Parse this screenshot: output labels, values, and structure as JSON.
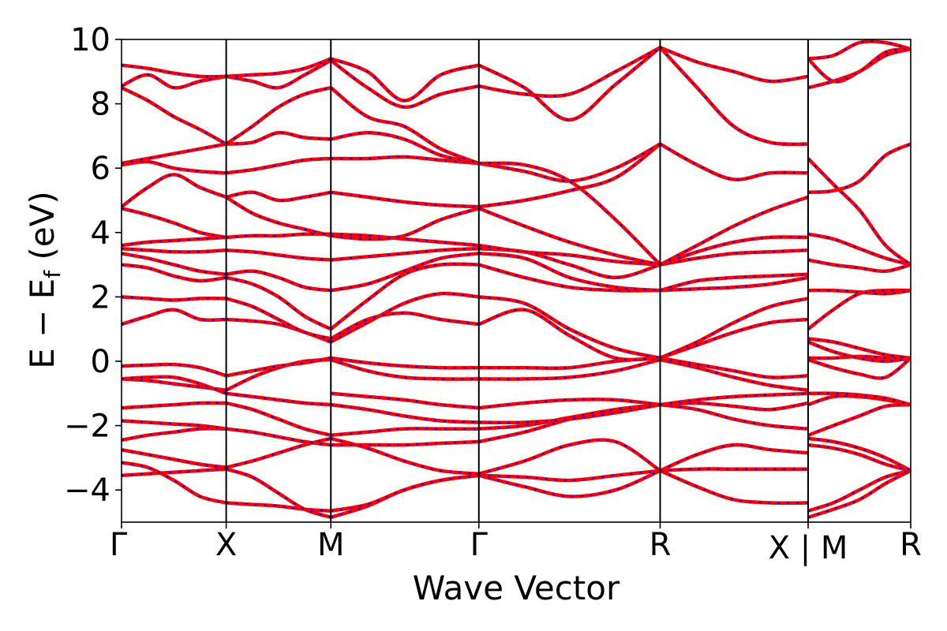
{
  "chart_data": {
    "type": "line",
    "xlabel": "Wave Vector",
    "ylabel": "E − E_f (eV)",
    "ylabel_parts": {
      "main": "E − E",
      "sub": "f",
      "unit": " (eV)"
    },
    "ylim": [
      -5,
      10
    ],
    "yticks": [
      -4,
      -2,
      0,
      2,
      4,
      6,
      8,
      10
    ],
    "ytick_labels": [
      "−4",
      "−2",
      "0",
      "2",
      "4",
      "6",
      "8",
      "10"
    ],
    "xlim": [
      0,
      7.54
    ],
    "high_symmetry_points": [
      {
        "label": "Γ",
        "x": 0.0
      },
      {
        "label": "X",
        "x": 1.0
      },
      {
        "label": "M",
        "x": 2.0
      },
      {
        "label": "Γ",
        "x": 3.414
      },
      {
        "label": "R",
        "x": 5.146
      },
      {
        "label": "X | M",
        "x": 6.56
      },
      {
        "label": "R",
        "x": 7.54
      }
    ],
    "path_break_label": "X | M",
    "grid": false,
    "series_colors": {
      "red_bands": "#ff0000",
      "blue_bands": "#0000ff"
    },
    "segments": [
      {
        "from": "Γ",
        "to": "X",
        "x": [
          0,
          0.25,
          0.5,
          0.75,
          1.0
        ],
        "bands": [
          [
            -3.55,
            -3.5,
            -3.45,
            -3.4,
            -3.35
          ],
          [
            -3.15,
            -3.3,
            -3.7,
            -4.2,
            -4.4
          ],
          [
            -2.75,
            -2.9,
            -3.05,
            -3.2,
            -3.3
          ],
          [
            -2.45,
            -2.3,
            -2.2,
            -2.1,
            -2.1
          ],
          [
            -1.85,
            -1.9,
            -1.95,
            -2.0,
            -2.1
          ],
          [
            -1.45,
            -1.4,
            -1.35,
            -1.3,
            -1.3
          ],
          [
            -0.55,
            -0.6,
            -0.7,
            -0.8,
            -0.9
          ],
          [
            -0.55,
            -0.5,
            -0.5,
            -0.7,
            -1.0
          ],
          [
            -0.15,
            -0.12,
            -0.1,
            -0.2,
            -0.45
          ],
          [
            1.15,
            1.4,
            1.6,
            1.3,
            1.3
          ],
          [
            2.0,
            1.95,
            1.9,
            1.95,
            1.95
          ],
          [
            3.0,
            2.9,
            2.65,
            2.5,
            2.6
          ],
          [
            3.35,
            3.2,
            3.0,
            2.8,
            2.7
          ],
          [
            3.5,
            3.45,
            3.4,
            3.4,
            3.45
          ],
          [
            3.6,
            3.7,
            3.75,
            3.8,
            3.85
          ],
          [
            4.75,
            4.55,
            4.3,
            4.0,
            3.85
          ],
          [
            4.8,
            5.4,
            5.8,
            5.4,
            5.1
          ],
          [
            6.1,
            6.2,
            6.0,
            5.9,
            5.85
          ],
          [
            6.15,
            6.3,
            6.45,
            6.6,
            6.75
          ],
          [
            8.5,
            8.1,
            7.6,
            7.2,
            6.75
          ],
          [
            8.55,
            8.9,
            8.5,
            8.7,
            8.85
          ],
          [
            9.2,
            9.1,
            8.95,
            8.85,
            8.85
          ]
        ]
      },
      {
        "from": "X",
        "to": "M",
        "x": [
          1.0,
          1.25,
          1.5,
          1.75,
          2.0
        ],
        "bands": [
          [
            -4.4,
            -4.45,
            -4.5,
            -4.6,
            -4.65
          ],
          [
            -3.35,
            -3.6,
            -4.1,
            -4.6,
            -4.85
          ],
          [
            -3.3,
            -3.1,
            -2.85,
            -2.6,
            -2.4
          ],
          [
            -2.1,
            -2.2,
            -2.35,
            -2.5,
            -2.6
          ],
          [
            -1.3,
            -1.5,
            -1.8,
            -2.1,
            -2.3
          ],
          [
            -1.0,
            -1.1,
            -1.2,
            -1.3,
            -1.35
          ],
          [
            -0.9,
            -0.5,
            -0.2,
            0.0,
            0.05
          ],
          [
            -0.45,
            -0.3,
            -0.15,
            -0.05,
            0.1
          ],
          [
            1.3,
            1.25,
            1.15,
            0.9,
            0.6
          ],
          [
            1.95,
            1.7,
            1.3,
            0.9,
            0.7
          ],
          [
            2.6,
            2.4,
            2.0,
            1.4,
            1.0
          ],
          [
            2.7,
            2.8,
            2.6,
            2.3,
            2.2
          ],
          [
            3.45,
            3.4,
            3.3,
            3.2,
            3.15
          ],
          [
            3.85,
            3.9,
            3.9,
            3.95,
            3.95
          ],
          [
            5.1,
            4.6,
            4.3,
            4.1,
            3.9
          ],
          [
            5.1,
            5.25,
            5.0,
            5.1,
            5.25
          ],
          [
            5.85,
            5.95,
            6.1,
            6.25,
            6.3
          ],
          [
            6.75,
            6.8,
            7.1,
            6.95,
            6.9
          ],
          [
            6.75,
            7.3,
            7.9,
            8.3,
            8.5
          ],
          [
            8.85,
            8.7,
            8.5,
            8.9,
            9.35
          ],
          [
            8.85,
            8.9,
            8.95,
            9.1,
            9.4
          ]
        ]
      },
      {
        "from": "M",
        "to": "Γ",
        "x": [
          2.0,
          2.35,
          2.7,
          3.05,
          3.414
        ],
        "bands": [
          [
            -4.85,
            -4.5,
            -4.0,
            -3.7,
            -3.55
          ],
          [
            -4.65,
            -4.45,
            -4.0,
            -3.7,
            -3.55
          ],
          [
            -2.4,
            -2.7,
            -3.1,
            -3.4,
            -3.5
          ],
          [
            -2.6,
            -2.6,
            -2.6,
            -2.55,
            -2.5
          ],
          [
            -2.3,
            -2.2,
            -2.1,
            -2.1,
            -2.1
          ],
          [
            -1.35,
            -1.5,
            -1.7,
            -1.85,
            -1.9
          ],
          [
            -1.0,
            -1.1,
            -1.2,
            -1.35,
            -1.45
          ],
          [
            0.05,
            -0.3,
            -0.5,
            -0.55,
            -0.55
          ],
          [
            0.1,
            -0.05,
            -0.15,
            -0.2,
            -0.2
          ],
          [
            0.6,
            1.2,
            1.8,
            2.1,
            2.0
          ],
          [
            0.7,
            1.3,
            1.5,
            1.3,
            1.15
          ],
          [
            1.0,
            1.9,
            2.7,
            3.0,
            3.0
          ],
          [
            2.2,
            2.4,
            2.8,
            3.2,
            3.35
          ],
          [
            3.15,
            3.25,
            3.35,
            3.45,
            3.5
          ],
          [
            3.95,
            3.9,
            3.8,
            3.7,
            3.6
          ],
          [
            3.9,
            3.8,
            3.9,
            4.4,
            4.75
          ],
          [
            5.25,
            5.1,
            4.95,
            4.85,
            4.8
          ],
          [
            6.3,
            6.3,
            6.35,
            6.25,
            6.15
          ],
          [
            6.9,
            7.1,
            6.9,
            6.4,
            6.15
          ],
          [
            8.5,
            7.6,
            7.3,
            6.6,
            6.15
          ],
          [
            9.35,
            8.5,
            7.9,
            8.3,
            8.55
          ],
          [
            9.4,
            9.0,
            8.1,
            8.9,
            9.2
          ]
        ]
      },
      {
        "from": "Γ",
        "to": "R",
        "x": [
          3.414,
          3.85,
          4.28,
          4.72,
          5.146
        ],
        "bands": [
          [
            -3.55,
            -3.6,
            -3.7,
            -3.55,
            -3.4
          ],
          [
            -3.55,
            -3.9,
            -4.2,
            -4.0,
            -3.4
          ],
          [
            -3.5,
            -3.1,
            -2.6,
            -2.5,
            -3.4
          ],
          [
            -2.5,
            -2.2,
            -1.8,
            -1.5,
            -1.35
          ],
          [
            -2.1,
            -2.0,
            -1.75,
            -1.5,
            -1.35
          ],
          [
            -1.9,
            -1.9,
            -1.8,
            -1.6,
            -1.35
          ],
          [
            -1.45,
            -1.3,
            -1.2,
            -1.2,
            -1.35
          ],
          [
            -0.55,
            -0.55,
            -0.5,
            -0.3,
            0.05
          ],
          [
            -0.2,
            -0.2,
            -0.2,
            0.0,
            0.1
          ],
          [
            1.15,
            1.6,
            0.8,
            0.1,
            0.1
          ],
          [
            2.0,
            1.8,
            1.0,
            0.4,
            0.1
          ],
          [
            3.0,
            2.6,
            2.3,
            2.2,
            2.2
          ],
          [
            3.35,
            3.2,
            2.6,
            2.3,
            2.2
          ],
          [
            3.5,
            3.4,
            3.0,
            2.6,
            3.0
          ],
          [
            3.6,
            3.4,
            3.3,
            3.1,
            3.0
          ],
          [
            4.75,
            4.2,
            3.7,
            3.3,
            3.0
          ],
          [
            4.8,
            5.0,
            5.3,
            5.7,
            6.75
          ],
          [
            6.15,
            5.9,
            5.6,
            6.0,
            6.75
          ],
          [
            6.15,
            6.1,
            5.6,
            4.4,
            3.0
          ],
          [
            8.55,
            8.3,
            8.3,
            9.0,
            9.75
          ],
          [
            9.2,
            8.5,
            7.5,
            8.6,
            9.75
          ]
        ]
      },
      {
        "from": "R",
        "to": "X",
        "x": [
          5.146,
          5.5,
          5.85,
          6.2,
          6.56
        ],
        "bands": [
          [
            -3.4,
            -3.9,
            -4.3,
            -4.4,
            -4.4
          ],
          [
            -3.4,
            -3.35,
            -3.35,
            -3.35,
            -3.35
          ],
          [
            -3.4,
            -2.9,
            -2.6,
            -2.75,
            -2.85
          ],
          [
            -1.35,
            -1.5,
            -1.8,
            -2.0,
            -2.1
          ],
          [
            -1.35,
            -1.3,
            -1.4,
            -1.5,
            -1.3
          ],
          [
            -1.35,
            -1.2,
            -1.1,
            -1.05,
            -1.0
          ],
          [
            0.05,
            -0.2,
            -0.5,
            -0.75,
            -0.9
          ],
          [
            0.1,
            -0.1,
            -0.3,
            -0.5,
            -0.45
          ],
          [
            0.1,
            0.5,
            0.9,
            1.2,
            1.3
          ],
          [
            0.1,
            0.6,
            1.2,
            1.7,
            1.95
          ],
          [
            2.2,
            2.25,
            2.3,
            2.4,
            2.6
          ],
          [
            2.2,
            2.5,
            2.6,
            2.65,
            2.7
          ],
          [
            3.0,
            3.2,
            3.35,
            3.4,
            3.45
          ],
          [
            3.0,
            3.4,
            3.7,
            3.85,
            3.85
          ],
          [
            3.0,
            3.6,
            4.2,
            4.7,
            5.1
          ],
          [
            6.75,
            6.1,
            5.65,
            5.85,
            5.85
          ],
          [
            9.75,
            8.5,
            7.3,
            6.8,
            6.75
          ],
          [
            9.75,
            9.3,
            9.0,
            8.7,
            8.85
          ]
        ]
      },
      {
        "from": "M",
        "to": "R",
        "x": [
          6.56,
          6.8,
          7.05,
          7.3,
          7.54
        ],
        "bands": [
          [
            -4.85,
            -4.6,
            -4.3,
            -3.8,
            -3.4
          ],
          [
            -4.65,
            -4.4,
            -4.0,
            -3.6,
            -3.4
          ],
          [
            -2.6,
            -2.7,
            -2.9,
            -3.2,
            -3.4
          ],
          [
            -2.4,
            -2.5,
            -2.7,
            -3.0,
            -3.4
          ],
          [
            -2.3,
            -2.0,
            -1.7,
            -1.4,
            -1.35
          ],
          [
            -1.35,
            -1.1,
            -1.1,
            -1.2,
            -1.35
          ],
          [
            -1.0,
            -1.0,
            -1.05,
            -1.15,
            -1.35
          ],
          [
            0.05,
            -0.2,
            -0.4,
            -0.5,
            0.1
          ],
          [
            0.1,
            0.1,
            0.15,
            0.1,
            0.05
          ],
          [
            0.6,
            0.3,
            0.1,
            0.0,
            0.1
          ],
          [
            0.7,
            0.6,
            0.4,
            0.2,
            0.1
          ],
          [
            1.0,
            1.6,
            2.1,
            2.2,
            2.2
          ],
          [
            2.2,
            2.2,
            2.15,
            2.1,
            2.2
          ],
          [
            3.15,
            3.0,
            2.9,
            2.8,
            3.0
          ],
          [
            3.95,
            3.8,
            3.5,
            3.2,
            3.0
          ],
          [
            5.25,
            5.3,
            5.6,
            6.4,
            6.75
          ],
          [
            6.3,
            5.5,
            4.7,
            3.6,
            3.0
          ],
          [
            8.5,
            8.7,
            9.0,
            9.5,
            9.7
          ],
          [
            9.4,
            9.5,
            9.9,
            9.9,
            9.7
          ],
          [
            9.4,
            8.7,
            9.0,
            9.6,
            9.7
          ]
        ]
      }
    ]
  }
}
